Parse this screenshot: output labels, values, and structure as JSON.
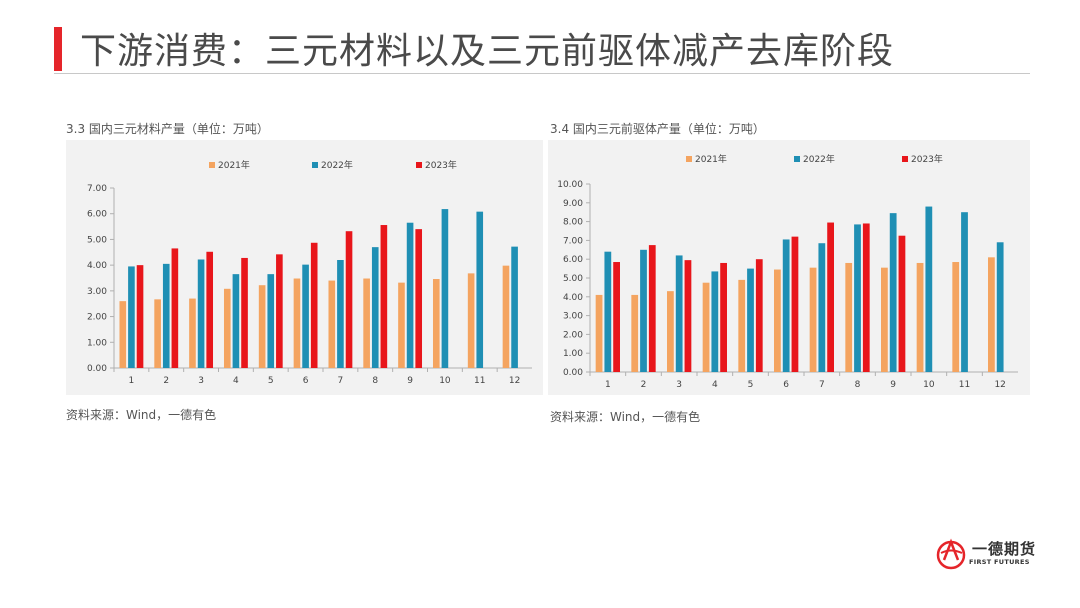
{
  "slide": {
    "title": "下游消费：三元材料以及三元前驱体减产去库阶段"
  },
  "left_panel": {
    "title": "3.3 国内三元材料产量（单位：万吨）",
    "source": "资料来源：Wind，一德有色"
  },
  "right_panel": {
    "title": "3.4 国内三元前驱体产量（单位：万吨）",
    "source": "资料来源：Wind，一德有色"
  },
  "logo": {
    "cn": "一德期货",
    "en": "FIRST FUTURES"
  },
  "colors": {
    "s2021": "#f4a460",
    "s2022": "#1f8fb4",
    "s2023": "#e8161b",
    "axis": "#b0b0b0",
    "brand_red": "#e5252a"
  },
  "chart_data": [
    {
      "type": "bar",
      "title": "3.3 国内三元材料产量（单位：万吨）",
      "categories": [
        "1",
        "2",
        "3",
        "4",
        "5",
        "6",
        "7",
        "8",
        "9",
        "10",
        "11",
        "12"
      ],
      "ylim": [
        0,
        7
      ],
      "ytick_step": 1,
      "ytick_decimals": 2,
      "grid": false,
      "legend_position": "top",
      "series": [
        {
          "name": "2021年",
          "values": [
            2.6,
            2.67,
            2.7,
            3.08,
            3.22,
            3.48,
            3.4,
            3.48,
            3.32,
            3.46,
            3.68,
            3.98
          ]
        },
        {
          "name": "2022年",
          "values": [
            3.95,
            4.05,
            4.22,
            3.65,
            3.65,
            4.02,
            4.2,
            4.7,
            5.65,
            6.18,
            6.08,
            4.72
          ]
        },
        {
          "name": "2023年",
          "values": [
            4.0,
            4.65,
            4.52,
            4.28,
            4.42,
            4.87,
            5.32,
            5.56,
            5.4,
            null,
            null,
            null
          ]
        }
      ]
    },
    {
      "type": "bar",
      "title": "3.4 国内三元前驱体产量（单位：万吨）",
      "categories": [
        "1",
        "2",
        "3",
        "4",
        "5",
        "6",
        "7",
        "8",
        "9",
        "10",
        "11",
        "12"
      ],
      "ylim": [
        0,
        10
      ],
      "ytick_step": 1,
      "ytick_decimals": 2,
      "grid": false,
      "legend_position": "top",
      "series": [
        {
          "name": "2021年",
          "values": [
            4.1,
            4.1,
            4.3,
            4.75,
            4.9,
            5.45,
            5.55,
            5.8,
            5.55,
            5.8,
            5.85,
            6.1
          ]
        },
        {
          "name": "2022年",
          "values": [
            6.4,
            6.5,
            6.2,
            5.35,
            5.5,
            7.05,
            6.85,
            7.85,
            8.45,
            8.8,
            8.5,
            6.9
          ]
        },
        {
          "name": "2023年",
          "values": [
            5.85,
            6.75,
            5.95,
            5.8,
            6.0,
            7.2,
            7.95,
            7.9,
            7.25,
            null,
            null,
            null
          ]
        }
      ]
    }
  ]
}
